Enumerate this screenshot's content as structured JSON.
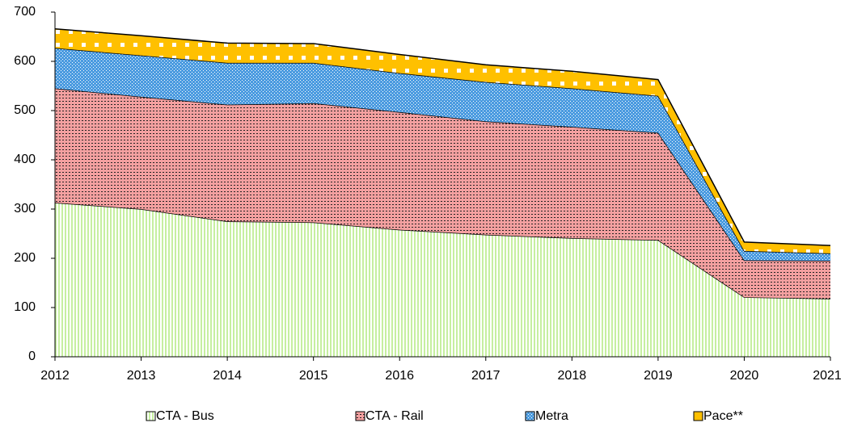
{
  "chart_data": {
    "type": "stacked-area",
    "categories": [
      "2012",
      "2013",
      "2014",
      "2015",
      "2016",
      "2017",
      "2018",
      "2019",
      "2020",
      "2021"
    ],
    "series": [
      {
        "name": "CTA - Bus",
        "color": "#c6efa0",
        "values": [
          313,
          300,
          275,
          273,
          258,
          248,
          241,
          237,
          121,
          118
        ]
      },
      {
        "name": "CTA - Rail",
        "color": "#f4a0a0",
        "values": [
          232,
          228,
          237,
          242,
          239,
          230,
          226,
          218,
          75,
          77
        ]
      },
      {
        "name": "Metra",
        "color": "#4b9be0",
        "values": [
          82,
          84,
          85,
          82,
          79,
          80,
          78,
          75,
          19,
          15
        ]
      },
      {
        "name": "Pace**",
        "color": "#ffc000",
        "values": [
          39,
          40,
          40,
          39,
          38,
          35,
          35,
          33,
          18,
          16
        ]
      }
    ],
    "ylim": [
      0,
      700
    ],
    "yticks": [
      0,
      100,
      200,
      300,
      400,
      500,
      600,
      700
    ],
    "grid": false,
    "legend": "bottom"
  }
}
